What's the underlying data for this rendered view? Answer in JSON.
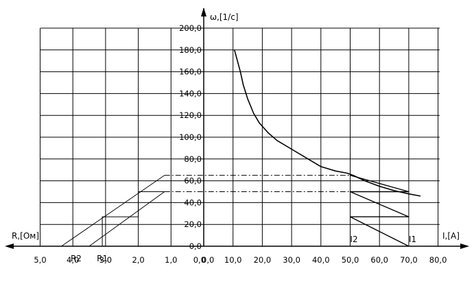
{
  "chart_data": {
    "type": "line",
    "title": "",
    "right_panel": {
      "xlabel": "I,[A]",
      "xlim": [
        0,
        80
      ],
      "x_ticks": [
        "0,0",
        "10,0",
        "20,0",
        "30,0",
        "40,0",
        "50,0",
        "60,0",
        "70,0",
        "80,0"
      ],
      "ylabel": "ω,[1/c]",
      "ylim": [
        0,
        200
      ],
      "y_ticks": [
        "0,0",
        "20,0",
        "40,0",
        "60,0",
        "80,0",
        "100,0",
        "120,0",
        "140,0",
        "160,0",
        "180,0",
        "200,0"
      ],
      "grid": true,
      "series": [
        {
          "kind": "speed-current characteristic",
          "points": [
            [
              10.5,
              180
            ],
            [
              11.5,
              170
            ],
            [
              12.5,
              160
            ],
            [
              13.5,
              148
            ],
            [
              15,
              135
            ],
            [
              17,
              122
            ],
            [
              19,
              113
            ],
            [
              22,
              104
            ],
            [
              25,
              97
            ],
            [
              30,
              89
            ],
            [
              35,
              81
            ],
            [
              40,
              73
            ],
            [
              45,
              69
            ],
            [
              49,
              67
            ],
            [
              51,
              65
            ],
            [
              55,
              60
            ],
            [
              60,
              55
            ],
            [
              65,
              51
            ],
            [
              70,
              48
            ],
            [
              74,
              46
            ]
          ]
        },
        {
          "kind": "starting switching path",
          "points": [
            [
              50,
              65
            ],
            [
              70,
              50
            ],
            [
              50,
              50
            ],
            [
              70,
              27
            ],
            [
              50,
              27
            ],
            [
              70,
              0
            ]
          ]
        }
      ],
      "markers": [
        {
          "label": "I2",
          "x": 50
        },
        {
          "label": "I1",
          "x": 70
        }
      ],
      "guide_levels": [
        65,
        50
      ]
    },
    "left_panel": {
      "xlabel": "R,[Ом]",
      "xlim": [
        0,
        5
      ],
      "x_direction": "reversed",
      "x_ticks": [
        "5,0",
        "4,0",
        "3,0",
        "2,0",
        "1,0",
        "0,0"
      ],
      "markers": [
        {
          "label": "R2",
          "x": 3.9
        },
        {
          "label": "R1",
          "x": 3.1
        }
      ],
      "lines": [
        {
          "points": [
            [
              4.35,
              0
            ],
            [
              1.2,
              65
            ]
          ]
        },
        {
          "points": [
            [
              3.5,
              0
            ],
            [
              1.2,
              50
            ]
          ]
        }
      ],
      "steps": [
        {
          "points": [
            [
              3.1,
              0
            ],
            [
              3.1,
              27
            ],
            [
              2.0,
              27
            ],
            [
              2.0,
              50
            ],
            [
              1.2,
              50
            ]
          ]
        }
      ]
    }
  }
}
